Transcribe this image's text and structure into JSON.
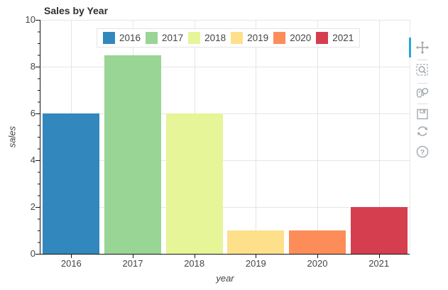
{
  "chart_data": {
    "type": "bar",
    "title": "Sales by Year",
    "xlabel": "year",
    "ylabel": "sales",
    "categories": [
      "2016",
      "2017",
      "2018",
      "2019",
      "2020",
      "2021"
    ],
    "values": [
      6,
      8.5,
      6,
      1,
      1,
      2
    ],
    "series_colors": [
      "#3288bd",
      "#99d594",
      "#e6f598",
      "#fee08b",
      "#fc8d59",
      "#d53e4f"
    ],
    "ylim": [
      0,
      10
    ],
    "yticks": [
      0,
      2,
      4,
      6,
      8,
      10
    ],
    "minor_tick_step": 0.5,
    "grid": "on",
    "legend_entries": [
      "2016",
      "2017",
      "2018",
      "2019",
      "2020",
      "2021"
    ],
    "legend_position": "top-center-inside"
  },
  "colors": {
    "grid_line": "#e5e5e5",
    "axis_line": "#141414",
    "tick_label": "#444444",
    "title_text": "#303030",
    "legend_border": "#e5e5e5",
    "toolbar_icon": "#a2a9ad",
    "active_tool_indicator": "#29a8d6"
  },
  "toolbar": {
    "orientation": "vertical-right",
    "tools": [
      {
        "icon": "bokeh-logo",
        "active": false
      },
      {
        "icon": "pan-icon",
        "active": true
      },
      {
        "icon": "box-zoom-icon",
        "active": false
      },
      {
        "icon": "wheel-zoom-icon",
        "active": false
      },
      {
        "icon": "save-icon",
        "active": false
      },
      {
        "icon": "reset-icon",
        "active": false
      },
      {
        "icon": "help-icon",
        "active": false
      }
    ]
  }
}
